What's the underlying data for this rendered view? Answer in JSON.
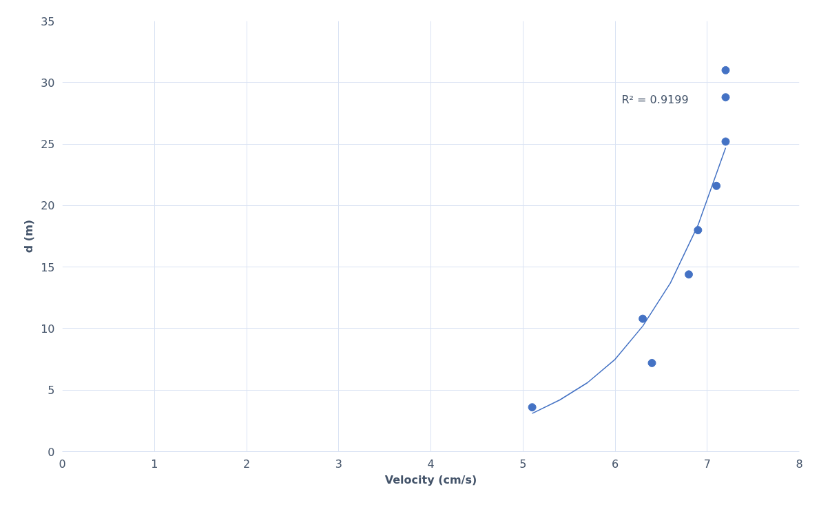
{
  "chart_data": {
    "type": "scatter",
    "xlabel": "Velocity (cm/s)",
    "ylabel": "d (m)",
    "xlim": [
      0,
      8
    ],
    "xticks": [
      0,
      1,
      2,
      3,
      4,
      5,
      6,
      7,
      8
    ],
    "ylim": [
      0,
      35
    ],
    "yticks": [
      0,
      5,
      10,
      15,
      20,
      25,
      30,
      35
    ],
    "grid": true,
    "annotations": [
      "R² = 0.9199"
    ],
    "series": [
      {
        "color": "#4472c4",
        "marker": "circle",
        "x": [
          5.1,
          6.3,
          6.4,
          6.8,
          6.9,
          7.1,
          7.2,
          7.2,
          7.2
        ],
        "values": [
          3.6,
          10.8,
          7.2,
          14.4,
          18.0,
          21.6,
          25.2,
          28.8,
          31.0
        ]
      },
      {
        "type": "line",
        "color": "#4472c4",
        "line_style": "solid",
        "x": [
          5.1,
          5.4,
          5.7,
          6.0,
          6.3,
          6.6,
          6.9,
          7.2
        ],
        "values": [
          3.1,
          4.2,
          5.6,
          7.5,
          10.2,
          13.7,
          18.4,
          24.7
        ]
      }
    ]
  }
}
